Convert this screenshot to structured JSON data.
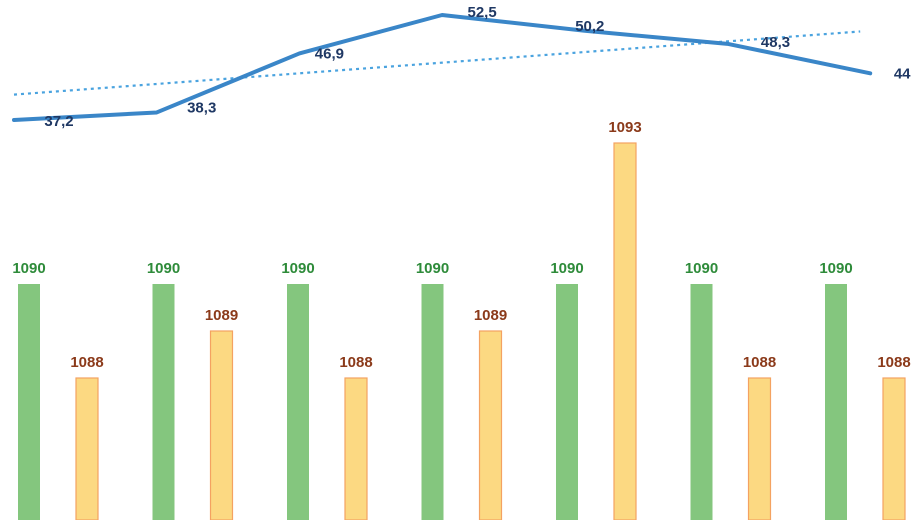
{
  "chart_data": {
    "type": "bar",
    "title": "",
    "xlabel": "",
    "ylabel": "",
    "grid": false,
    "legend": "none",
    "categories": [
      "",
      "",
      "",
      "",
      "",
      "",
      ""
    ],
    "bar_series": [
      {
        "values": [
          1090,
          1090,
          1090,
          1090,
          1090,
          1090,
          1090
        ],
        "labels": [
          "1090",
          "1090",
          "1090",
          "1090",
          "1090",
          "1090",
          "1090"
        ],
        "color": "#84c67e",
        "label_color": "#2e8b3a"
      },
      {
        "values": [
          1088,
          1089,
          1088,
          1089,
          1093,
          1088,
          1088
        ],
        "labels": [
          "1088",
          "1089",
          "1088",
          "1089",
          "1093",
          "1088",
          "1088"
        ],
        "color": "#fcd982",
        "stroke": "#f4a261",
        "label_color": "#8b3a1a"
      }
    ],
    "bar_ylim": [
      1085,
      1094
    ],
    "line_series": {
      "type": "line",
      "values": [
        37.2,
        38.3,
        46.9,
        52.5,
        50.2,
        48.3,
        44
      ],
      "labels": [
        "37,2",
        "38,3",
        "46,9",
        "52,5",
        "50,2",
        "48,3",
        "44"
      ],
      "color": "#3a86c8",
      "label_color": "#1f3864"
    },
    "trendline": {
      "type": "linear",
      "style": "dotted",
      "start": 40.9,
      "end": 50.1,
      "color": "#4aa3df"
    },
    "line_ylim": [
      35,
      55
    ]
  }
}
